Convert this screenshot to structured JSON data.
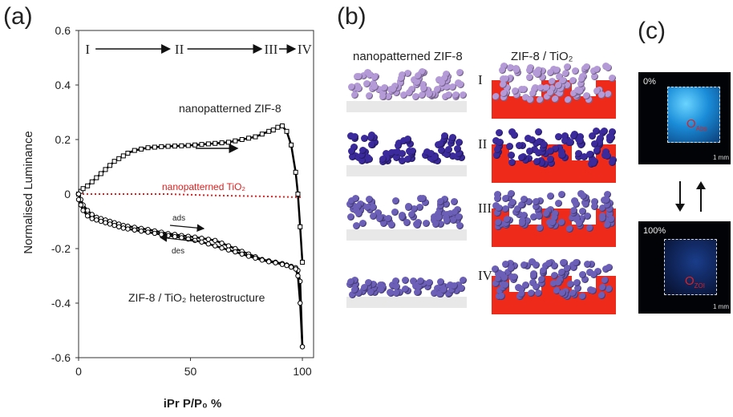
{
  "panel_labels": {
    "a": "(a)",
    "b": "(b)",
    "c": "(c)"
  },
  "chart_data": {
    "type": "line",
    "xlabel": "iPr P/P₀ %",
    "ylabel": "Normalised Luminance",
    "xlim": [
      0,
      105
    ],
    "ylim": [
      -0.6,
      0.6
    ],
    "xticks": [
      "0",
      "50",
      "100"
    ],
    "yticks": [
      "0.6",
      "0.4",
      "0.2",
      "0",
      "-0.2",
      "-0.4",
      "-0.6"
    ],
    "stage_labels": [
      "I",
      "II",
      "III",
      "IV"
    ],
    "annotations": {
      "zif8": "nanopatterned ZIF-8",
      "tio2": "nanopatterned TiO₂",
      "hetero": "ZIF-8 / TiO₂ heterostructure",
      "ads": "ads",
      "des": "des"
    },
    "series": [
      {
        "name": "nanopatterned ZIF-8",
        "color": "#000000",
        "marker": "square",
        "x": [
          0,
          1,
          2,
          4,
          6,
          8,
          10,
          12,
          14,
          16,
          18,
          20,
          22,
          25,
          28,
          31,
          34,
          37,
          40,
          43,
          46,
          49,
          52,
          55,
          58,
          61,
          64,
          67,
          70,
          73,
          76,
          79,
          82,
          85,
          87,
          89,
          91,
          93,
          95,
          97,
          98,
          99,
          100
        ],
        "y": [
          0.0,
          0.01,
          0.02,
          0.03,
          0.045,
          0.06,
          0.075,
          0.09,
          0.105,
          0.12,
          0.13,
          0.14,
          0.15,
          0.16,
          0.165,
          0.17,
          0.172,
          0.174,
          0.175,
          0.176,
          0.177,
          0.178,
          0.18,
          0.182,
          0.184,
          0.186,
          0.188,
          0.19,
          0.195,
          0.2,
          0.205,
          0.21,
          0.22,
          0.23,
          0.235,
          0.245,
          0.25,
          0.23,
          0.18,
          0.08,
          0.0,
          -0.12,
          -0.25
        ]
      },
      {
        "name": "nanopatterned TiO₂",
        "color": "#e02020",
        "marker": "none",
        "x": [
          0,
          20,
          40,
          60,
          80,
          100
        ],
        "y": [
          0.0,
          0.0,
          0.0,
          -0.005,
          -0.008,
          -0.012
        ]
      },
      {
        "name": "ZIF-8 / TiO₂ heterostructure (ads)",
        "color": "#000000",
        "marker": "circle",
        "x": [
          0,
          1,
          2,
          4,
          6,
          8,
          10,
          12,
          14,
          16,
          18,
          20,
          22,
          25,
          28,
          31,
          34,
          37,
          40,
          43,
          46,
          49,
          52,
          55,
          58,
          61,
          64,
          67,
          70,
          73,
          76,
          79,
          82,
          85,
          88,
          91,
          93,
          95,
          97,
          98,
          99,
          100
        ],
        "y": [
          0.0,
          -0.02,
          -0.04,
          -0.06,
          -0.075,
          -0.085,
          -0.09,
          -0.095,
          -0.1,
          -0.105,
          -0.11,
          -0.115,
          -0.118,
          -0.122,
          -0.126,
          -0.13,
          -0.135,
          -0.14,
          -0.145,
          -0.148,
          -0.152,
          -0.155,
          -0.158,
          -0.162,
          -0.166,
          -0.17,
          -0.18,
          -0.19,
          -0.2,
          -0.21,
          -0.22,
          -0.23,
          -0.24,
          -0.245,
          -0.25,
          -0.255,
          -0.26,
          -0.265,
          -0.27,
          -0.28,
          -0.32,
          -0.56
        ]
      },
      {
        "name": "ZIF-8 / TiO₂ heterostructure (des)",
        "color": "#000000",
        "marker": "circle",
        "x": [
          100,
          99,
          98,
          97,
          95,
          93,
          91,
          88,
          85,
          82,
          79,
          76,
          73,
          70,
          67,
          64,
          61,
          58,
          55,
          52,
          49,
          46,
          43,
          40,
          37,
          34,
          31,
          28,
          25,
          22,
          20,
          18,
          16,
          14,
          12,
          10,
          8,
          6,
          4,
          2,
          1,
          0
        ],
        "y": [
          -0.56,
          -0.4,
          -0.3,
          -0.275,
          -0.268,
          -0.262,
          -0.258,
          -0.252,
          -0.248,
          -0.242,
          -0.235,
          -0.228,
          -0.22,
          -0.212,
          -0.205,
          -0.198,
          -0.19,
          -0.183,
          -0.176,
          -0.17,
          -0.165,
          -0.16,
          -0.156,
          -0.152,
          -0.148,
          -0.144,
          -0.14,
          -0.136,
          -0.132,
          -0.128,
          -0.125,
          -0.12,
          -0.115,
          -0.11,
          -0.105,
          -0.1,
          -0.095,
          -0.09,
          -0.08,
          -0.06,
          -0.04,
          -0.02
        ]
      }
    ]
  },
  "panel_b": {
    "col1_header": "nanopatterned ZIF-8",
    "col2_header": "ZIF-8 / TiO₂",
    "rows": [
      "I",
      "II",
      "III",
      "IV"
    ],
    "colors": {
      "light": "#b59ad8",
      "dark": "#3b2a9c",
      "mixed": "#6c5fb8",
      "substrate": "#e8e8e8",
      "tio2": "#ee2a1a"
    }
  },
  "panel_c": {
    "top_label": "0%",
    "bottom_label": "100%",
    "spot_top": "O",
    "spot_top_sub": "Abs",
    "spot_bottom": "O",
    "spot_bottom_sub": "ZOI",
    "scale": "1 mm"
  }
}
